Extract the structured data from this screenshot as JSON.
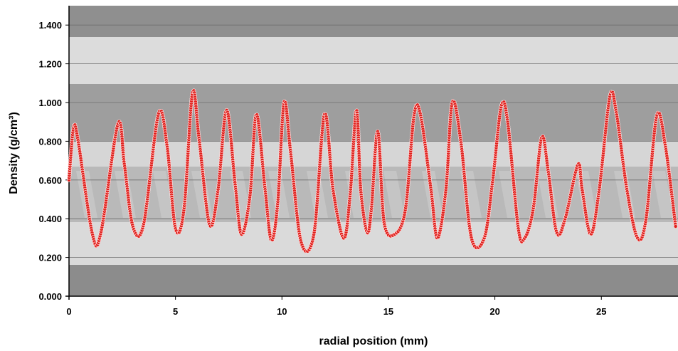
{
  "chart_data": {
    "type": "scatter",
    "title": "",
    "xlabel": "radial position (mm)",
    "ylabel": "Density (g/cm³)",
    "xlim": [
      0,
      28.6
    ],
    "ylim": [
      0,
      1.5
    ],
    "x_ticks": [
      "0",
      "5",
      "10",
      "15",
      "20",
      "25"
    ],
    "x_tick_values": [
      0,
      5,
      10,
      15,
      20,
      25
    ],
    "y_ticks": [
      "0.000",
      "0.200",
      "0.400",
      "0.600",
      "0.800",
      "1.000",
      "1.200",
      "1.400"
    ],
    "y_tick_values": [
      0,
      0.2,
      0.4,
      0.6,
      0.8,
      1.0,
      1.2,
      1.4
    ],
    "grid": true,
    "legend": "none",
    "background": "x-ray wood core image",
    "series": [
      {
        "color": "#e0201c",
        "marker": "circle",
        "line": true,
        "points": [
          [
            0.0,
            0.6
          ],
          [
            0.2,
            0.86
          ],
          [
            0.4,
            0.82
          ],
          [
            1.1,
            0.32
          ],
          [
            1.5,
            0.33
          ],
          [
            2.3,
            0.89
          ],
          [
            2.6,
            0.68
          ],
          [
            3.0,
            0.36
          ],
          [
            3.5,
            0.37
          ],
          [
            4.2,
            0.94
          ],
          [
            4.6,
            0.78
          ],
          [
            5.0,
            0.35
          ],
          [
            5.4,
            0.45
          ],
          [
            5.8,
            1.05
          ],
          [
            6.1,
            0.82
          ],
          [
            6.6,
            0.37
          ],
          [
            7.0,
            0.55
          ],
          [
            7.4,
            0.96
          ],
          [
            7.8,
            0.58
          ],
          [
            8.1,
            0.32
          ],
          [
            8.5,
            0.52
          ],
          [
            8.8,
            0.94
          ],
          [
            9.2,
            0.56
          ],
          [
            9.5,
            0.29
          ],
          [
            9.8,
            0.48
          ],
          [
            10.1,
            1.0
          ],
          [
            10.4,
            0.75
          ],
          [
            10.9,
            0.28
          ],
          [
            11.5,
            0.32
          ],
          [
            12.0,
            0.94
          ],
          [
            12.4,
            0.55
          ],
          [
            12.9,
            0.3
          ],
          [
            13.2,
            0.52
          ],
          [
            13.5,
            0.96
          ],
          [
            13.7,
            0.55
          ],
          [
            14.0,
            0.33
          ],
          [
            14.2,
            0.45
          ],
          [
            14.5,
            0.85
          ],
          [
            14.8,
            0.38
          ],
          [
            15.3,
            0.32
          ],
          [
            15.8,
            0.45
          ],
          [
            16.2,
            0.93
          ],
          [
            16.5,
            0.94
          ],
          [
            17.0,
            0.55
          ],
          [
            17.3,
            0.3
          ],
          [
            17.7,
            0.55
          ],
          [
            18.0,
            1.0
          ],
          [
            18.4,
            0.8
          ],
          [
            18.9,
            0.3
          ],
          [
            19.5,
            0.3
          ],
          [
            19.9,
            0.6
          ],
          [
            20.3,
            0.98
          ],
          [
            20.6,
            0.9
          ],
          [
            21.1,
            0.35
          ],
          [
            21.4,
            0.3
          ],
          [
            21.8,
            0.45
          ],
          [
            22.2,
            0.82
          ],
          [
            22.5,
            0.65
          ],
          [
            22.9,
            0.33
          ],
          [
            23.3,
            0.4
          ],
          [
            23.9,
            0.68
          ],
          [
            24.1,
            0.55
          ],
          [
            24.5,
            0.32
          ],
          [
            24.9,
            0.55
          ],
          [
            25.4,
            1.03
          ],
          [
            25.7,
            0.95
          ],
          [
            26.2,
            0.55
          ],
          [
            26.7,
            0.3
          ],
          [
            27.1,
            0.4
          ],
          [
            27.6,
            0.93
          ],
          [
            28.0,
            0.78
          ],
          [
            28.5,
            0.35
          ]
        ]
      }
    ]
  }
}
